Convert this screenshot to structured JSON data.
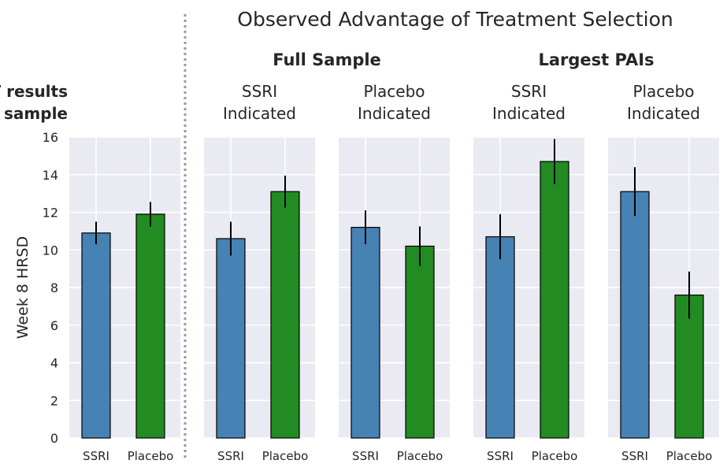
{
  "chart_data": {
    "type": "bar",
    "title": "Observed Advantage of Treatment Selection",
    "ylabel": "Week 8 HRSD",
    "ylim": [
      0,
      16
    ],
    "yticks": [
      0,
      2,
      4,
      6,
      8,
      10,
      12,
      14,
      16
    ],
    "grid": true,
    "group_titles": [
      {
        "text": "Full Sample",
        "panels": [
          1,
          2
        ]
      },
      {
        "text": "Largest PAIs",
        "panels": [
          3,
          4
        ]
      }
    ],
    "panels": [
      {
        "label_line1": "RCT results",
        "label_line2": "Full sample",
        "label_bold": true,
        "categories": [
          "SSRI",
          "Placebo"
        ],
        "values": [
          10.9,
          11.9
        ],
        "errors": [
          0.6,
          0.65
        ]
      },
      {
        "label_line1": "SSRI",
        "label_line2": "Indicated",
        "label_bold": false,
        "categories": [
          "SSRI",
          "Placebo"
        ],
        "values": [
          10.6,
          13.1
        ],
        "errors": [
          0.9,
          0.85
        ]
      },
      {
        "label_line1": "Placebo",
        "label_line2": "Indicated",
        "label_bold": false,
        "categories": [
          "SSRI",
          "Placebo"
        ],
        "values": [
          11.2,
          10.2
        ],
        "errors": [
          0.9,
          1.05
        ]
      },
      {
        "label_line1": "SSRI",
        "label_line2": "Indicated",
        "label_bold": false,
        "categories": [
          "SSRI",
          "Placebo"
        ],
        "values": [
          10.7,
          14.7
        ],
        "errors": [
          1.2,
          1.2
        ]
      },
      {
        "label_line1": "Placebo",
        "label_line2": "Indicated",
        "label_bold": false,
        "categories": [
          "SSRI",
          "Placebo"
        ],
        "values": [
          13.1,
          7.6
        ],
        "errors": [
          1.3,
          1.25
        ]
      }
    ],
    "colors": {
      "SSRI": "#4682b4",
      "Placebo": "#228b22",
      "panel_background": "#eaeaf2",
      "grid": "#ffffff",
      "divider": "#999999"
    }
  }
}
